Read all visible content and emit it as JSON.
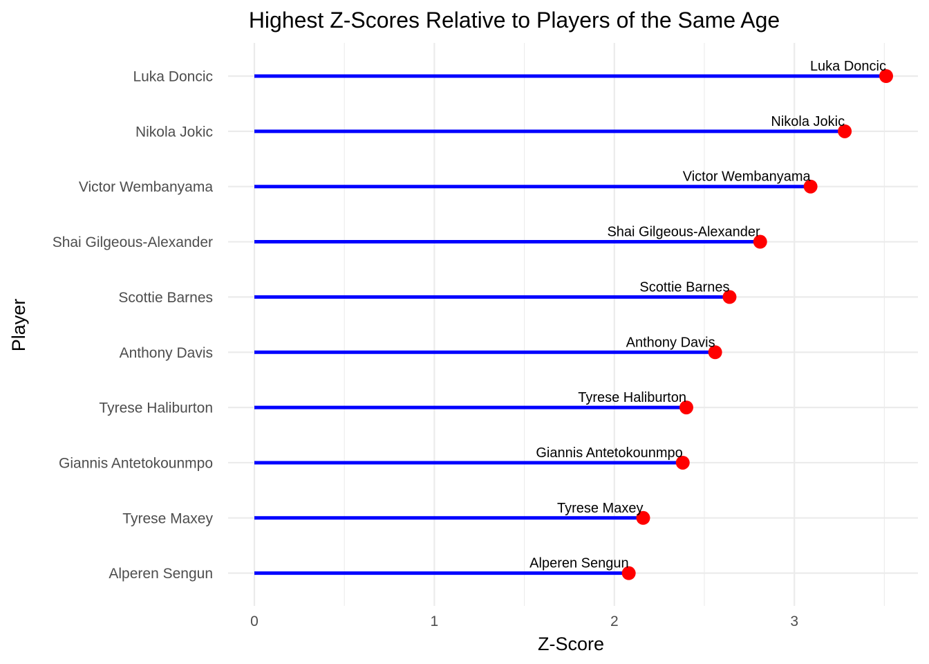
{
  "chart_data": {
    "type": "lollipop",
    "title": "Highest Z-Scores Relative to Players of the Same Age",
    "xlabel": "Z-Score",
    "ylabel": "Player",
    "xlim": [
      0,
      3.52
    ],
    "x_ticks": [
      "0",
      "1",
      "2",
      "3"
    ],
    "x_tick_values": [
      0,
      1,
      2,
      3
    ],
    "grid": true,
    "line_color": "#0000ff",
    "point_color": "#ff0000",
    "categories": [
      "Luka Doncic",
      "Nikola Jokic",
      "Victor Wembanyama",
      "Shai Gilgeous-Alexander",
      "Scottie Barnes",
      "Anthony Davis",
      "Tyrese Haliburton",
      "Giannis Antetokounmpo",
      "Tyrese Maxey",
      "Alperen Sengun"
    ],
    "values": [
      3.51,
      3.28,
      3.09,
      2.81,
      2.64,
      2.56,
      2.4,
      2.38,
      2.16,
      2.08
    ],
    "data_labels": [
      "Luka Doncic",
      "Nikola Jokic",
      "Victor Wembanyama",
      "Shai Gilgeous-Alexander",
      "Scottie Barnes",
      "Anthony Davis",
      "Tyrese Haliburton",
      "Giannis Antetokounmpo",
      "Tyrese Maxey",
      "Alperen Sengun"
    ]
  }
}
